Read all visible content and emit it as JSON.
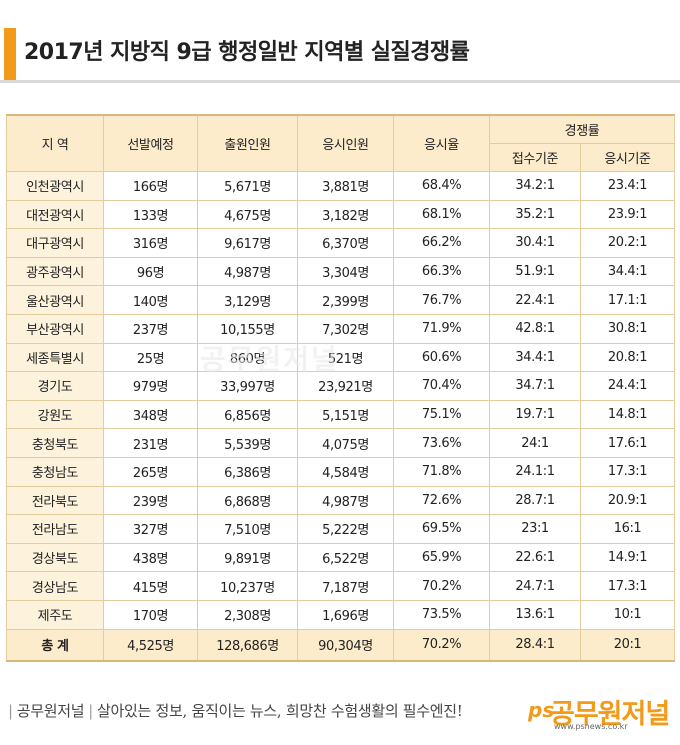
{
  "title": "2017년 지방직 9급 행정일반 지역별 실질경쟁률",
  "watermark": "공무원저널",
  "table": {
    "headers": {
      "region": "지 역",
      "planned": "선발예정",
      "applicants": "출원인원",
      "examinees": "응시인원",
      "exam_rate": "응시율",
      "competition": "경쟁률",
      "by_application": "접수기준",
      "by_exam": "응시기준"
    },
    "rows": [
      [
        "인천광역시",
        "166명",
        "5,671명",
        "3,881명",
        "68.4%",
        "34.2:1",
        "23.4:1"
      ],
      [
        "대전광역시",
        "133명",
        "4,675명",
        "3,182명",
        "68.1%",
        "35.2:1",
        "23.9:1"
      ],
      [
        "대구광역시",
        "316명",
        "9,617명",
        "6,370명",
        "66.2%",
        "30.4:1",
        "20.2:1"
      ],
      [
        "광주광역시",
        "96명",
        "4,987명",
        "3,304명",
        "66.3%",
        "51.9:1",
        "34.4:1"
      ],
      [
        "울산광역시",
        "140명",
        "3,129명",
        "2,399명",
        "76.7%",
        "22.4:1",
        "17.1:1"
      ],
      [
        "부산광역시",
        "237명",
        "10,155명",
        "7,302명",
        "71.9%",
        "42.8:1",
        "30.8:1"
      ],
      [
        "세종특별시",
        "25명",
        "860명",
        "521명",
        "60.6%",
        "34.4:1",
        "20.8:1"
      ],
      [
        "경기도",
        "979명",
        "33,997명",
        "23,921명",
        "70.4%",
        "34.7:1",
        "24.4:1"
      ],
      [
        "강원도",
        "348명",
        "6,856명",
        "5,151명",
        "75.1%",
        "19.7:1",
        "14.8:1"
      ],
      [
        "충청북도",
        "231명",
        "5,539명",
        "4,075명",
        "73.6%",
        "24:1",
        "17.6:1"
      ],
      [
        "충청남도",
        "265명",
        "6,386명",
        "4,584명",
        "71.8%",
        "24.1:1",
        "17.3:1"
      ],
      [
        "전라북도",
        "239명",
        "6,868명",
        "4,987명",
        "72.6%",
        "28.7:1",
        "20.9:1"
      ],
      [
        "전라남도",
        "327명",
        "7,510명",
        "5,222명",
        "69.5%",
        "23:1",
        "16:1"
      ],
      [
        "경상북도",
        "438명",
        "9,891명",
        "6,522명",
        "65.9%",
        "22.6:1",
        "14.9:1"
      ],
      [
        "경상남도",
        "415명",
        "10,237명",
        "7,187명",
        "70.2%",
        "24.7:1",
        "17.3:1"
      ],
      [
        "제주도",
        "170명",
        "2,308명",
        "1,696명",
        "73.5%",
        "13.6:1",
        "10:1"
      ]
    ],
    "total": [
      "총 계",
      "4,525명",
      "128,686명",
      "90,304명",
      "70.2%",
      "28.4:1",
      "20:1"
    ]
  },
  "footer": {
    "brand": "공무원저널",
    "slogan": "살아있는 정보, 움직이는 뉴스, 희망찬 수험생활의 필수엔진!"
  },
  "logo": {
    "ps": "ps",
    "name": "공무원저널",
    "url": "www.psnews.co.kr"
  },
  "colors": {
    "accent": "#f29a1a",
    "header_bg": "#fdeccc",
    "region_bg": "#fdf2dc",
    "border": "#e3cc9e"
  }
}
